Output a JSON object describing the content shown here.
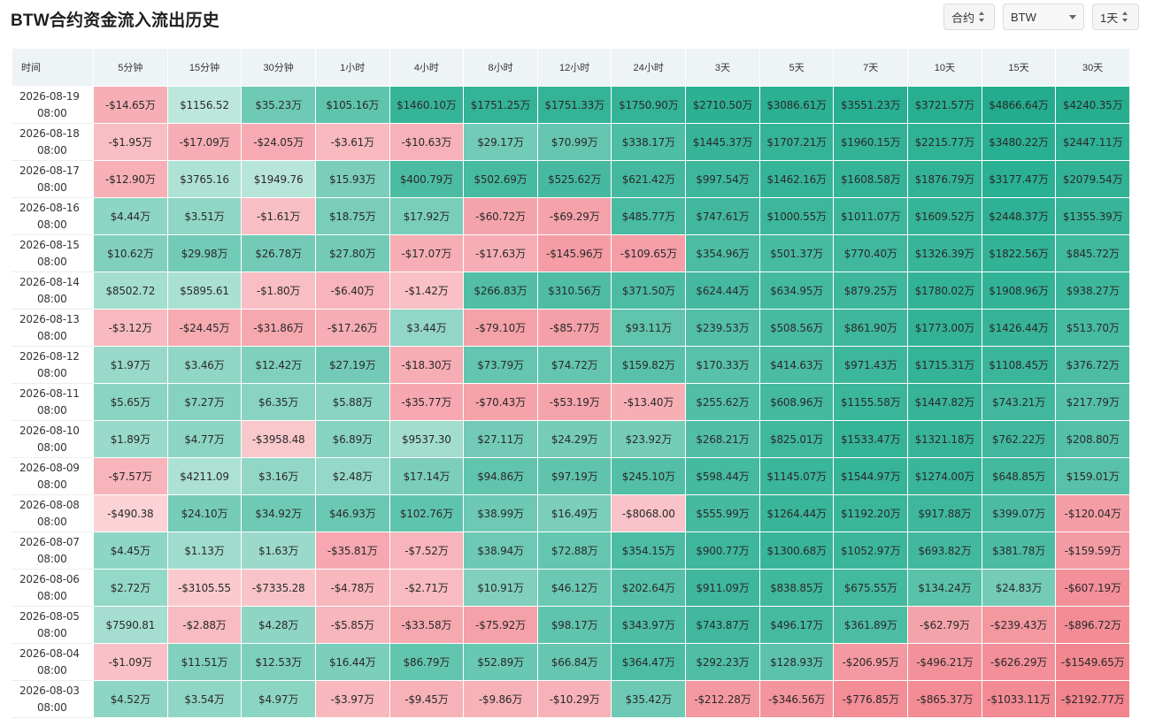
{
  "header": {
    "title": "BTW合约资金流入流出历史",
    "type_select": "合约",
    "symbol_select": "BTW",
    "interval_select": "1天"
  },
  "colors": {
    "positive_max": "#23ad8e",
    "positive_min": "#cfeee5",
    "negative_min": "#fbd6da",
    "negative_max": "#f17c86",
    "header_bg": "#eef3f6"
  },
  "table": {
    "columns": [
      "时间",
      "5分钟",
      "15分钟",
      "30分钟",
      "1小时",
      "4小时",
      "8小时",
      "12小时",
      "24小时",
      "3天",
      "5天",
      "7天",
      "10天",
      "15天",
      "30天"
    ],
    "rows": [
      {
        "date": "2026-08-19",
        "time": "08:00",
        "cells": [
          "-$14.65万",
          "$1156.52",
          "$35.23万",
          "$105.16万",
          "$1460.10万",
          "$1751.25万",
          "$1751.33万",
          "$1750.90万",
          "$2710.50万",
          "$3086.61万",
          "$3551.23万",
          "$3721.57万",
          "$4866.64万",
          "$4240.35万"
        ]
      },
      {
        "date": "2026-08-18",
        "time": "08:00",
        "cells": [
          "-$1.95万",
          "-$17.09万",
          "-$24.05万",
          "-$3.61万",
          "-$10.63万",
          "$29.17万",
          "$70.99万",
          "$338.17万",
          "$1445.37万",
          "$1707.21万",
          "$1960.15万",
          "$2215.77万",
          "$3480.22万",
          "$2447.11万"
        ]
      },
      {
        "date": "2026-08-17",
        "time": "08:00",
        "cells": [
          "-$12.90万",
          "$3765.16",
          "$1949.76",
          "$15.93万",
          "$400.79万",
          "$502.69万",
          "$525.62万",
          "$621.42万",
          "$997.54万",
          "$1462.16万",
          "$1608.58万",
          "$1876.79万",
          "$3177.47万",
          "$2079.54万"
        ]
      },
      {
        "date": "2026-08-16",
        "time": "08:00",
        "cells": [
          "$4.44万",
          "$3.51万",
          "-$1.61万",
          "$18.75万",
          "$17.92万",
          "-$60.72万",
          "-$69.29万",
          "$485.77万",
          "$747.61万",
          "$1000.55万",
          "$1011.07万",
          "$1609.52万",
          "$2448.37万",
          "$1355.39万"
        ]
      },
      {
        "date": "2026-08-15",
        "time": "08:00",
        "cells": [
          "$10.62万",
          "$29.98万",
          "$26.78万",
          "$27.80万",
          "-$17.07万",
          "-$17.63万",
          "-$145.96万",
          "-$109.65万",
          "$354.96万",
          "$501.37万",
          "$770.40万",
          "$1326.39万",
          "$1822.56万",
          "$845.72万"
        ]
      },
      {
        "date": "2026-08-14",
        "time": "08:00",
        "cells": [
          "$8502.72",
          "$5895.61",
          "-$1.80万",
          "-$6.40万",
          "-$1.42万",
          "$266.83万",
          "$310.56万",
          "$371.50万",
          "$624.44万",
          "$634.95万",
          "$879.25万",
          "$1780.02万",
          "$1908.96万",
          "$938.27万"
        ]
      },
      {
        "date": "2026-08-13",
        "time": "08:00",
        "cells": [
          "-$3.12万",
          "-$24.45万",
          "-$31.86万",
          "-$17.26万",
          "$3.44万",
          "-$79.10万",
          "-$85.77万",
          "$93.11万",
          "$239.53万",
          "$508.56万",
          "$861.90万",
          "$1773.00万",
          "$1426.44万",
          "$513.70万"
        ]
      },
      {
        "date": "2026-08-12",
        "time": "08:00",
        "cells": [
          "$1.97万",
          "$3.46万",
          "$12.42万",
          "$27.19万",
          "-$18.30万",
          "$73.79万",
          "$74.72万",
          "$159.82万",
          "$170.33万",
          "$414.63万",
          "$971.43万",
          "$1715.31万",
          "$1108.45万",
          "$376.72万"
        ]
      },
      {
        "date": "2026-08-11",
        "time": "08:00",
        "cells": [
          "$5.65万",
          "$7.27万",
          "$6.35万",
          "$5.88万",
          "-$35.77万",
          "-$70.43万",
          "-$53.19万",
          "-$13.40万",
          "$255.62万",
          "$608.96万",
          "$1155.58万",
          "$1447.82万",
          "$743.21万",
          "$217.79万"
        ]
      },
      {
        "date": "2026-08-10",
        "time": "08:00",
        "cells": [
          "$1.89万",
          "$4.77万",
          "-$3958.48",
          "$6.89万",
          "$9537.30",
          "$27.11万",
          "$24.29万",
          "$23.92万",
          "$268.21万",
          "$825.01万",
          "$1533.47万",
          "$1321.18万",
          "$762.22万",
          "$208.80万"
        ]
      },
      {
        "date": "2026-08-09",
        "time": "08:00",
        "cells": [
          "-$7.57万",
          "$4211.09",
          "$3.16万",
          "$2.48万",
          "$17.14万",
          "$94.86万",
          "$97.19万",
          "$245.10万",
          "$598.44万",
          "$1145.07万",
          "$1544.97万",
          "$1274.00万",
          "$648.85万",
          "$159.01万"
        ]
      },
      {
        "date": "2026-08-08",
        "time": "08:00",
        "cells": [
          "-$490.38",
          "$24.10万",
          "$34.92万",
          "$46.93万",
          "$102.76万",
          "$38.99万",
          "$16.49万",
          "-$8068.00",
          "$555.99万",
          "$1264.44万",
          "$1192.20万",
          "$917.88万",
          "$399.07万",
          "-$120.04万"
        ]
      },
      {
        "date": "2026-08-07",
        "time": "08:00",
        "cells": [
          "$4.45万",
          "$1.13万",
          "$1.63万",
          "-$35.81万",
          "-$7.52万",
          "$38.94万",
          "$72.88万",
          "$354.15万",
          "$900.77万",
          "$1300.68万",
          "$1052.97万",
          "$693.82万",
          "$381.78万",
          "-$159.59万"
        ]
      },
      {
        "date": "2026-08-06",
        "time": "08:00",
        "cells": [
          "$2.72万",
          "-$3105.55",
          "-$7335.28",
          "-$4.78万",
          "-$2.71万",
          "$10.91万",
          "$46.12万",
          "$202.64万",
          "$911.09万",
          "$838.85万",
          "$675.55万",
          "$134.24万",
          "$24.83万",
          "-$607.19万"
        ]
      },
      {
        "date": "2026-08-05",
        "time": "08:00",
        "cells": [
          "$7590.81",
          "-$2.88万",
          "$4.28万",
          "-$5.85万",
          "-$33.58万",
          "-$75.92万",
          "$98.17万",
          "$343.97万",
          "$743.87万",
          "$496.17万",
          "$361.89万",
          "-$62.79万",
          "-$239.43万",
          "-$896.72万"
        ]
      },
      {
        "date": "2026-08-04",
        "time": "08:00",
        "cells": [
          "-$1.09万",
          "$11.51万",
          "$12.53万",
          "$16.44万",
          "$86.79万",
          "$52.89万",
          "$66.84万",
          "$364.47万",
          "$292.23万",
          "$128.93万",
          "-$206.95万",
          "-$496.21万",
          "-$626.29万",
          "-$1549.65万"
        ]
      },
      {
        "date": "2026-08-03",
        "time": "08:00",
        "cells": [
          "$4.52万",
          "$3.54万",
          "$4.97万",
          "-$3.97万",
          "-$9.45万",
          "-$9.86万",
          "-$10.29万",
          "$35.42万",
          "-$212.28万",
          "-$346.56万",
          "-$776.85万",
          "-$865.37万",
          "-$1033.11万",
          "-$2192.77万"
        ]
      }
    ]
  }
}
